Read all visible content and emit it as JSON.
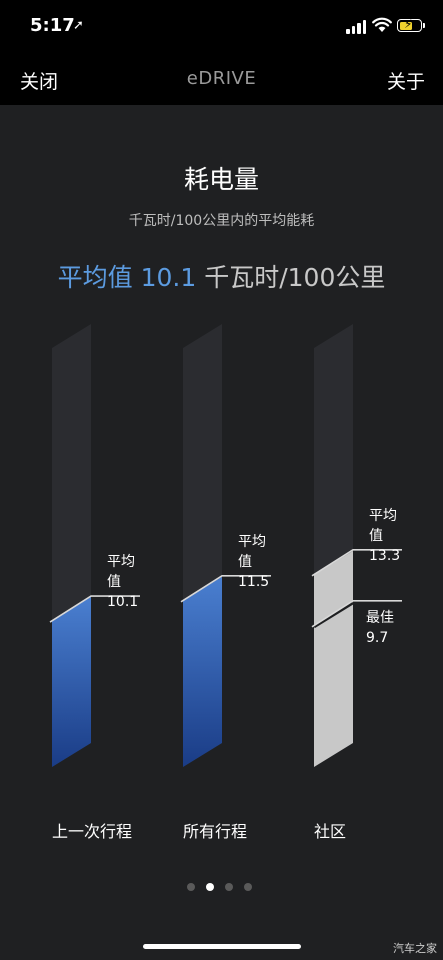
{
  "status": {
    "time": "5:17"
  },
  "nav": {
    "close_label": "关闭",
    "title": "eDRIVE",
    "about_label": "关于"
  },
  "header": {
    "title": "耗电量",
    "subtitle": "千瓦时/100公里内的平均能耗",
    "avg_label": "平均值",
    "avg_value": "10.1",
    "avg_unit": "千瓦时/100公里"
  },
  "chart_data": {
    "type": "bar",
    "categories": [
      "上一次行程",
      "所有行程",
      "社区"
    ],
    "series": [
      {
        "name": "平均值",
        "values": [
          10.1,
          11.5,
          13.3
        ]
      },
      {
        "name": "最佳",
        "values": [
          null,
          null,
          9.7
        ]
      }
    ],
    "value_labels": {
      "avg": [
        "10.1",
        "11.5",
        "13.3"
      ],
      "best": "9.7"
    },
    "marker_labels": {
      "avg": "平均值",
      "best": "最佳"
    },
    "ylim": [
      0,
      29
    ],
    "colors": {
      "blue_top": "#4a7fd0",
      "blue_bottom": "#1a3c86",
      "gray": "#c8c8c8",
      "track": "#2b2c30"
    }
  },
  "pager": {
    "count": 4,
    "active_index": 1
  },
  "watermark": "汽车之家"
}
